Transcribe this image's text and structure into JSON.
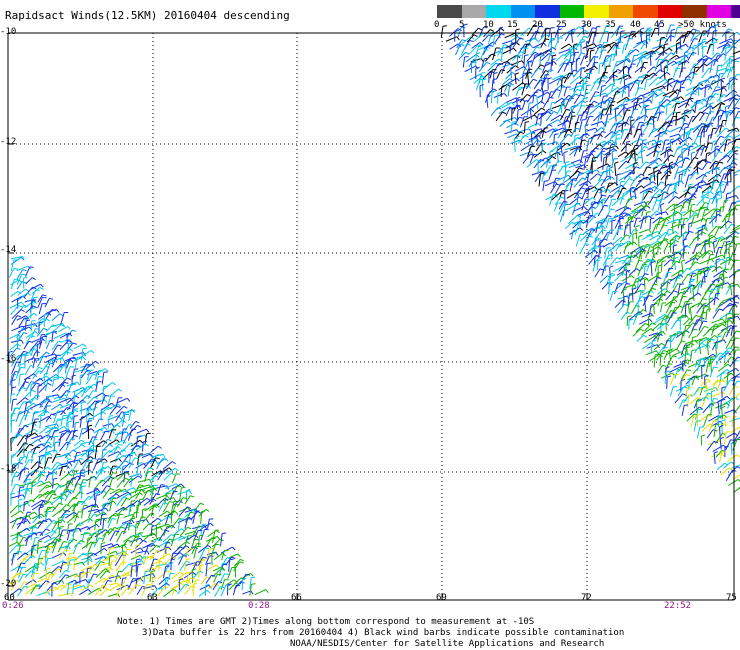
{
  "title": "Rapidsact Winds(12.5KM) 20160404 descending",
  "colorbar": {
    "colors": [
      "#4a4a4a",
      "#a8a8a8",
      "#00d8f0",
      "#0090f0",
      "#1030e0",
      "#00b800",
      "#f0f000",
      "#f0a000",
      "#f04800",
      "#e00000",
      "#903000",
      "#e000e0",
      "#500090"
    ],
    "labels": [
      "0",
      "5",
      "10",
      "15",
      "20",
      "25",
      "30",
      "35",
      "40",
      "45",
      ">50 knots"
    ]
  },
  "axes": {
    "lat_labels": [
      "-10",
      "-12",
      "-14",
      "-16",
      "-18",
      "-20"
    ],
    "lon_labels": [
      "60",
      "63",
      "66",
      "69",
      "72",
      "75"
    ]
  },
  "times": {
    "left_start": "0:26",
    "left_end": "0:28",
    "right": "22:52"
  },
  "notes": {
    "line1": "Note: 1) Times are GMT 2)Times along bottom correspond to measurement at -10S",
    "line2": "3)Data buffer is 22 hrs from 20160404 4) Black wind barbs indicate possible contamination",
    "line3": "NOAA/NESDIS/Center for Satellite Applications and Research"
  }
}
